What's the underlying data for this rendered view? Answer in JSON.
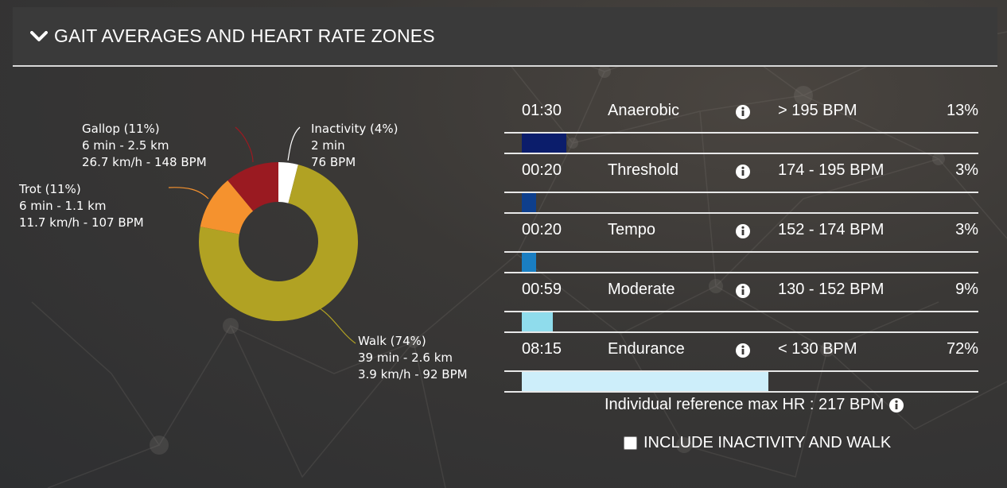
{
  "header": {
    "title": "GAIT AVERAGES AND HEART RATE ZONES"
  },
  "gaits": [
    {
      "key": "walk",
      "lines": [
        "Walk (74%)",
        "39 min - 2.6 km",
        "3.9 km/h - 92 BPM"
      ],
      "percent": 74,
      "color": "#b1a223"
    },
    {
      "key": "trot",
      "lines": [
        "Trot (11%)",
        "6 min - 1.1 km",
        "11.7 km/h - 107 BPM"
      ],
      "percent": 11,
      "color": "#f5922e"
    },
    {
      "key": "gallop",
      "lines": [
        "Gallop (11%)",
        "6 min - 2.5 km",
        "26.7 km/h - 148 BPM"
      ],
      "percent": 11,
      "color": "#9a1a21"
    },
    {
      "key": "inactivity",
      "lines": [
        "Inactivity (4%)",
        "2 min",
        "76 BPM"
      ],
      "percent": 4,
      "color": "#ffffff"
    }
  ],
  "zones": [
    {
      "time": "01:30",
      "name": "Anaerobic",
      "range": "> 195 BPM",
      "percent": "13%",
      "fill": 0.13,
      "color": "#0b1d6b"
    },
    {
      "time": "00:20",
      "name": "Threshold",
      "range": "174 - 195 BPM",
      "percent": "3%",
      "fill": 0.03,
      "color": "#0e3f8c"
    },
    {
      "time": "00:20",
      "name": "Tempo",
      "range": "152 - 174 BPM",
      "percent": "3%",
      "fill": 0.03,
      "color": "#1a7ec2"
    },
    {
      "time": "00:59",
      "name": "Moderate",
      "range": "130 - 152 BPM",
      "percent": "9%",
      "fill": 0.09,
      "color": "#8fdcec"
    },
    {
      "time": "08:15",
      "name": "Endurance",
      "range": "< 130 BPM",
      "percent": "72%",
      "fill": 0.72,
      "color": "#cdeefa"
    }
  ],
  "reference": {
    "text": "Individual reference max HR : 217 BPM"
  },
  "include_toggle": {
    "label": "INCLUDE INACTIVITY AND WALK",
    "checked": false
  }
}
